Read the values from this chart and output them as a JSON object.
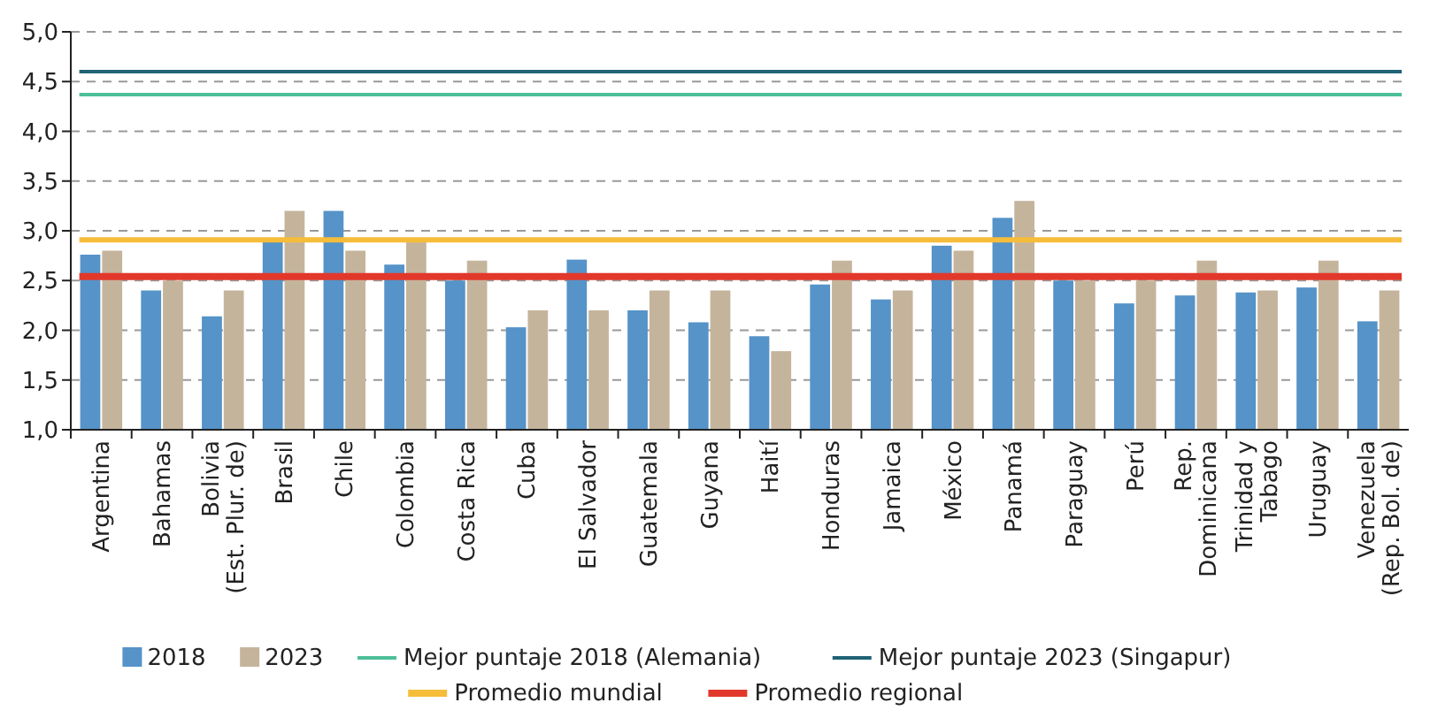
{
  "chart_data": {
    "type": "bar",
    "categories": [
      "Argentina",
      "Bahamas",
      "Bolivia\n(Est. Plur. de)",
      "Brasil",
      "Chile",
      "Colombia",
      "Costa Rica",
      "Cuba",
      "El Salvador",
      "Guatemala",
      "Guyana",
      "Haití",
      "Honduras",
      "Jamaica",
      "México",
      "Panamá",
      "Paraguay",
      "Perú",
      "Rep.\nDominicana",
      "Trinidad y\nTabago",
      "Uruguay",
      "Venezuela\n(Rep. Bol. de)"
    ],
    "series": [
      {
        "name": "2018",
        "color": "#5593c8",
        "values": [
          2.76,
          2.4,
          2.14,
          2.89,
          3.2,
          2.66,
          2.5,
          2.03,
          2.71,
          2.2,
          2.08,
          1.94,
          2.46,
          2.31,
          2.85,
          3.13,
          2.5,
          2.27,
          2.35,
          2.38,
          2.43,
          2.09
        ]
      },
      {
        "name": "2023",
        "color": "#c5b49c",
        "values": [
          2.8,
          2.5,
          2.4,
          3.2,
          2.8,
          2.9,
          2.7,
          2.2,
          2.2,
          2.4,
          2.4,
          1.79,
          2.7,
          2.4,
          2.8,
          3.3,
          2.5,
          2.5,
          2.7,
          2.4,
          2.7,
          2.4
        ]
      }
    ],
    "ylim": [
      1,
      5
    ],
    "yticks": [
      {
        "value": 1,
        "label": "1,0"
      },
      {
        "value": 1.5,
        "label": "1,5"
      },
      {
        "value": 2,
        "label": "2,0"
      },
      {
        "value": 2.5,
        "label": "2,5"
      },
      {
        "value": 3,
        "label": "3,0"
      },
      {
        "value": 3.5,
        "label": "3,5"
      },
      {
        "value": 4,
        "label": "4,0"
      },
      {
        "value": 4.5,
        "label": "4,5"
      },
      {
        "value": 5,
        "label": "5,0"
      }
    ],
    "ref_lines": [
      {
        "axis": "y",
        "value": 4.37,
        "label": "Mejor puntaje 2018 (Alemania)",
        "color": "#4dbf9a"
      },
      {
        "axis": "y",
        "value": 4.6,
        "label": "Mejor puntaje 2023 (Singapur)",
        "color": "#1f6276"
      },
      {
        "axis": "y",
        "value": 2.91,
        "label": "Promedio mundial",
        "color": "#f5bd3a"
      },
      {
        "axis": "y",
        "value": 2.54,
        "label": "Promedio regional",
        "color": "#e2382b"
      }
    ],
    "grid": "y",
    "legend": "bottom"
  }
}
